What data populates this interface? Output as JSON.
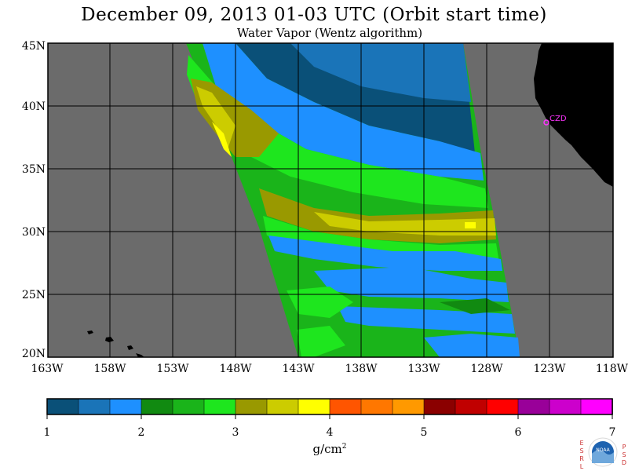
{
  "title": "December 09, 2013  01-03 UTC  (Orbit start time)",
  "subtitle": "Water Vapor (Wentz algorithm)",
  "map": {
    "lat_labels": [
      "45N",
      "40N",
      "35N",
      "30N",
      "25N",
      "20N"
    ],
    "lon_labels": [
      "163W",
      "158W",
      "153W",
      "148W",
      "143W",
      "138W",
      "133W",
      "128W",
      "123W",
      "118W"
    ],
    "station_label": "CZD",
    "land_color": "#000000",
    "nodata_color": "#6b6b6b",
    "station_color": "#ff33ff"
  },
  "colorbar": {
    "tick_labels": [
      "1",
      "2",
      "3",
      "4",
      "5",
      "6",
      "7"
    ],
    "units_base": "g/cm",
    "units_exp": "2",
    "colors": [
      "#0a5078",
      "#1a74b8",
      "#1e90ff",
      "#118a11",
      "#1ab41a",
      "#1ee61e",
      "#999900",
      "#cccc00",
      "#ffff00",
      "#ff5500",
      "#ff7700",
      "#ff9900",
      "#8b0000",
      "#c00000",
      "#ff0000",
      "#990099",
      "#cc00cc",
      "#ff00ff"
    ]
  },
  "logo": {
    "left_letters": "ESRL",
    "right_letters": "PSD",
    "center_text": "NOAA"
  }
}
